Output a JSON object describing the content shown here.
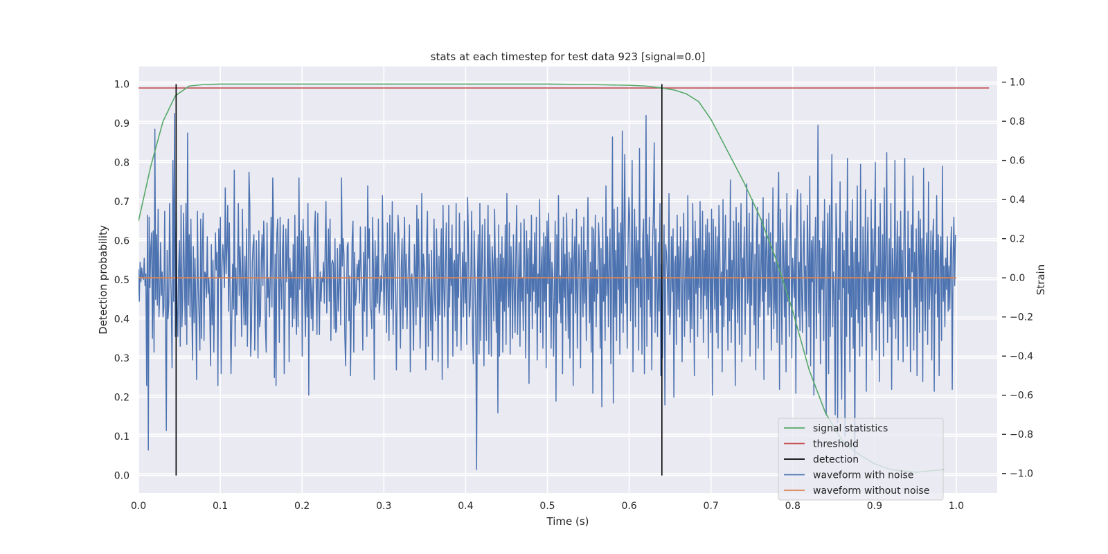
{
  "chart_data": {
    "type": "line",
    "title": "stats at each timestep for test data 923 [signal=0.0]",
    "xlabel": "Time (s)",
    "ylabel": "Detection probability",
    "y2label": "Strain",
    "xlim": [
      0.0,
      1.05
    ],
    "ylim": [
      -0.045,
      1.045
    ],
    "y2lim": [
      -1.1,
      1.08
    ],
    "xticks": [
      0.0,
      0.1,
      0.2,
      0.3,
      0.4,
      0.5,
      0.6,
      0.7,
      0.8,
      0.9,
      1.0
    ],
    "xtick_labels": [
      "0.0",
      "0.1",
      "0.2",
      "0.3",
      "0.4",
      "0.5",
      "0.6",
      "0.7",
      "0.8",
      "0.9",
      "1.0"
    ],
    "yticks": [
      0.0,
      0.1,
      0.2,
      0.3,
      0.4,
      0.5,
      0.6,
      0.7,
      0.8,
      0.9,
      1.0
    ],
    "ytick_labels": [
      "0.0",
      "0.1",
      "0.2",
      "0.3",
      "0.4",
      "0.5",
      "0.6",
      "0.7",
      "0.8",
      "0.9",
      "1.0"
    ],
    "y2ticks": [
      -1.0,
      -0.8,
      -0.6,
      -0.4,
      -0.2,
      0.0,
      0.2,
      0.4,
      0.6,
      0.8,
      1.0
    ],
    "y2tick_labels": [
      "−1.0",
      "−0.8",
      "−0.6",
      "−0.4",
      "−0.2",
      "0.0",
      "0.2",
      "0.4",
      "0.6",
      "0.8",
      "1.0"
    ],
    "grid": true,
    "legend_position": "bottom-right",
    "series": [
      {
        "name": "signal statistics",
        "axis": "left",
        "color": "#55a868",
        "x": [
          0.0,
          0.015,
          0.03,
          0.045,
          0.062,
          0.08,
          0.1,
          0.2,
          0.3,
          0.4,
          0.5,
          0.55,
          0.6,
          0.62,
          0.64,
          0.655,
          0.67,
          0.685,
          0.7,
          0.72,
          0.74,
          0.76,
          0.78,
          0.8,
          0.82,
          0.84,
          0.86,
          0.88,
          0.9,
          0.92,
          0.95,
          0.985
        ],
        "values": [
          0.65,
          0.79,
          0.905,
          0.97,
          0.995,
          0.999,
          1.0,
          1.0,
          1.0,
          1.0,
          1.0,
          0.999,
          0.997,
          0.995,
          0.99,
          0.985,
          0.975,
          0.955,
          0.91,
          0.83,
          0.75,
          0.66,
          0.55,
          0.42,
          0.27,
          0.16,
          0.09,
          0.055,
          0.03,
          0.015,
          0.008,
          0.015
        ]
      },
      {
        "name": "threshold",
        "axis": "left",
        "color": "#c44e52",
        "x": [
          0.0,
          1.04
        ],
        "values": [
          0.99,
          0.99
        ]
      },
      {
        "name": "detection",
        "axis": "left",
        "color": "#000000",
        "x": [
          0.046,
          0.64
        ],
        "ymin": 0.0,
        "ymax": 1.0
      },
      {
        "name": "waveform with noise",
        "axis": "right",
        "color": "#4c72b0",
        "x_range": [
          0.0,
          0.9990234375
        ],
        "values": [
          0.045,
          -0.12,
          0.08,
          -0.02,
          0.05,
          0.0,
          -0.01,
          0.1,
          -0.04,
          0.02,
          -0.55,
          0.32,
          -0.88,
          0.31,
          -0.05,
          0.15,
          0.23,
          -0.31,
          0.24,
          -0.38,
          0.76,
          -0.11,
          0.22,
          -0.14,
          0.35,
          -0.2,
          -0.08,
          0.18,
          -0.09,
          0.03,
          -0.2,
          -0.15,
          0.34,
          -0.25,
          -0.78,
          0.14,
          -0.21,
          -0.13,
          0.38,
          0.05,
          -0.11,
          -0.46,
          0.6,
          -0.12,
          0.84,
          -0.3,
          0.34,
          -0.16,
          -0.3,
          0.04,
          0.19,
          -0.35,
          0.37,
          -0.25,
          -0.11,
          0.33,
          0.03,
          -0.24,
          0.38,
          -0.34,
          0.74,
          -0.14,
          0.22,
          -0.2,
          0.3,
          -0.12,
          -0.42,
          0.16,
          -0.23,
          0.1,
          -0.16,
          -0.52,
          0.34,
          -0.04,
          -0.2,
          -0.37,
          0.3,
          -0.31,
          0.16,
          0.33,
          -0.32,
          0.03,
          0.02,
          -0.1,
          0.21,
          -0.08,
          0.0,
          -0.14,
          -0.45,
          0.17,
          -0.24,
          0.09,
          -0.38,
          -0.07,
          0.23,
          0.04,
          0.13,
          -0.55,
          0.25,
          0.0,
          0.31,
          -0.49,
          0.06,
          0.17,
          0.09,
          -0.05,
          0.46,
          0.02,
          0.16,
          0.37,
          -0.17,
          0.28,
          -0.13,
          -0.49,
          -0.21,
          0.07,
          -0.16,
          0.55,
          -0.35,
          0.05,
          -0.19,
          0.04,
          0.38,
          -0.09,
          0.16,
          0.0,
          -0.3,
          0.35,
          -0.05,
          -0.24,
          0.11,
          -0.24,
          0.25,
          -0.35,
          -0.03,
          0.54,
          0.37,
          -0.4,
          -0.26,
          0.08,
          0.17,
          0.22,
          -0.37,
          -0.09,
          0.19,
          -0.09,
          -0.41,
          0.24,
          -0.25,
          -0.21,
          0.09,
          0.22,
          -0.04,
          0.29,
          0.09,
          -0.25,
          -0.38,
          0.28,
          -0.1,
          0.0,
          -0.2,
          0.01,
          0.31,
          -0.15,
          0.51,
          0.24,
          -0.51,
          0.12,
          -0.55,
          0.22,
          0.3,
          0.04,
          -0.33,
          0.31,
          -0.02,
          -0.16,
          0.15,
          0.27,
          -0.49,
          -0.14,
          0.25,
          -0.02,
          0.14,
          0.3,
          -0.43,
          0.1,
          -0.1,
          0.03,
          -0.25,
          0.17,
          -0.21,
          0.32,
          -0.13,
          -0.29,
          0.21,
          -0.25,
          0.51,
          -0.06,
          0.05,
          0.24,
          -0.4,
          0.3,
          0.13,
          -0.1,
          -0.3,
          0.16,
          -0.2,
          0.38,
          -0.6,
          0.21,
          0.0,
          -0.21,
          0.0,
          -0.27,
          0.02,
          0.24,
          0.34,
          -0.03,
          -0.29,
          0.33,
          -0.08,
          -0.29,
          0.03,
          -0.12,
          0.0,
          -0.02,
          0.08,
          -0.13,
          0.15,
          0.39,
          -0.18,
          0.03,
          0.25,
          -0.12,
          0.3,
          -0.32,
          0.07,
          0.09,
          0.07,
          -0.26,
          0.2,
          -0.28,
          -0.26,
          0.15,
          -0.17,
          -0.04,
          0.17,
          -0.24,
          0.51,
          0.06,
          0.2,
          0.12,
          -0.29,
          -0.45,
          -0.14,
          0.16,
          0.18,
          -0.22,
          0.01,
          -0.5,
          -0.15,
          0.2,
          0.29,
          -0.38,
          0.13,
          -0.14,
          -0.09,
          0.07,
          -0.01,
          0.09,
          -0.13,
          0.26,
          0.04,
          -0.07,
          -0.37,
          0.13,
          -0.17,
          0.26,
          0.01,
          -0.3,
          0.47,
          0.1,
          0.25,
          -0.15,
          -0.17,
          -0.26,
          0.31,
          0.04,
          -0.52,
          0.19,
          -0.15,
          0.11,
          -0.13,
          0.3,
          -0.18,
          -0.13,
          0.01,
          -0.07,
          0.42,
          0.05,
          -0.19,
          0.07,
          0.12,
          -0.28,
          0.28,
          -0.11,
          -0.32,
          0.32,
          0.05,
          -0.16,
          0.39,
          -0.29,
          0.06,
          0.23,
          -0.02,
          -0.47,
          -0.09,
          0.32,
          0.22,
          -0.09,
          -0.36,
          0.05,
          0.2,
          -0.26,
          0.1,
          0.31,
          -0.15,
          0.12,
          -0.26,
          -0.03,
          0.1,
          0.27,
          -0.48,
          0.0,
          0.02,
          -0.12,
          -0.37,
          0.17,
          0.05,
          -0.24,
          0.37,
          -0.15,
          0.3,
          0.02,
          -0.36,
          -0.14,
          0.43,
          -0.2,
          0.12,
          0.06,
          -0.03,
          -0.47,
          0.19,
          0.34,
          -0.35,
          0.12,
          -0.09,
          -0.27,
          0.14,
          -0.42,
          -0.06,
          0.3,
          -0.13,
          -0.22,
          0.25,
          0.02,
          -0.43,
          0.11,
          -0.19,
          0.11,
          0.25,
          -0.52,
          0.37,
          -0.05,
          -0.2,
          0.08,
          0.28,
          -0.16,
          -0.46,
          0.37,
          -0.15,
          0.15,
          -0.04,
          0.27,
          -0.4,
          0.07,
          0.09,
          -0.27,
          0.38,
          -0.35,
          0.12,
          -0.1,
          0.33,
          0.1,
          -0.37,
          -0.06,
          0.13,
          -0.2,
          0.29,
          -0.13,
          0.08,
          -0.34,
          0.41,
          0.21,
          -0.2,
          -0.15,
          0.02,
          0.34,
          -0.29,
          -0.44,
          0.24,
          0.01,
          -0.23,
          -0.98,
          -0.02,
          0.22,
          -0.39,
          0.38,
          -0.32,
          0.06,
          0.27,
          -0.11,
          -0.45,
          0.3,
          -0.11,
          -0.32,
          0.06,
          0.37,
          -0.39,
          0.22,
          0.01,
          -0.4,
          0.16,
          0.07,
          -0.22,
          0.35,
          0.04,
          -0.28,
          0.1,
          -0.69,
          0.27,
          -0.4,
          0.12,
          -0.12,
          0.21,
          -0.38,
          0.1,
          -0.17,
          0.27,
          -0.34,
          0.43,
          -0.03,
          -0.15,
          0.28,
          -0.39,
          0.16,
          0.01,
          -0.31,
          0.22,
          -0.05,
          -0.28,
          0.14,
          0.37,
          -0.29,
          -0.06,
          0.18,
          -0.35,
          0.28,
          -0.12,
          0.0,
          -0.27,
          0.3,
          0.04,
          -0.41,
          0.24,
          -0.08,
          0.15,
          -0.54,
          0.19,
          -0.12,
          0.32,
          -0.26,
          0.07,
          -0.07,
          0.23,
          -0.18,
          0.31,
          -0.42,
          0.02,
          -0.15,
          0.4,
          -0.28,
          0.05,
          0.16,
          -0.36,
          0.23,
          -0.12,
          0.21,
          -0.46,
          0.29,
          -0.03,
          0.33,
          -0.2,
          0.18,
          -0.36,
          0.08,
          0.02,
          -0.4,
          -0.07,
          0.29,
          -0.63,
          0.22,
          -0.18,
          0.42,
          -0.13,
          0.01,
          -0.23,
          0.2,
          -0.49,
          0.31,
          -0.1,
          0.12,
          -0.27,
          0.33,
          0.0,
          -0.31,
          0.13,
          -0.41,
          0.1,
          -0.08,
          0.3,
          -0.55,
          0.1,
          0.21,
          -0.18,
          0.35,
          -0.36,
          -0.02,
          0.17,
          0.03,
          -0.46,
          0.26,
          -0.03,
          -0.2,
          0.31,
          -0.13,
          0.14,
          -0.32,
          0.06,
          0.41,
          0.02,
          -0.23,
          0.08,
          -0.38,
          0.26,
          -0.59,
          0.25,
          -0.12,
          0.32,
          -0.25,
          0.04,
          -0.08,
          0.28,
          0.16,
          -0.36,
          0.15,
          -0.66,
          0.31,
          -0.12,
          0.07,
          -0.32,
          0.47,
          -0.09,
          0.21,
          -0.25,
          0.08,
          0.25,
          -0.44,
          0.05,
          0.72,
          -0.64,
          0.35,
          -0.2,
          0.14,
          -0.32,
          0.36,
          -0.06,
          0.23,
          -0.39,
          0.28,
          -0.18,
          0.75,
          -0.28,
          0.24,
          0.63,
          -0.13,
          0.06,
          -0.36,
          0.15,
          0.41,
          0.3,
          -0.22,
          0.01,
          0.6,
          -0.48,
          0.09,
          0.35,
          -0.25,
          0.26,
          -0.05,
          0.19,
          -0.37,
          0.66,
          -0.15,
          0.1,
          -0.39,
          0.2,
          0.3,
          -0.49,
          0.15,
          0.83,
          -0.35,
          0.22,
          -0.11,
          0.31,
          -0.2,
          0.11,
          -0.47,
          0.19,
          0.34,
          0.69,
          -0.28,
          0.25,
          -0.04,
          -0.3,
          0.18,
          -0.17,
          0.38,
          -0.5,
          0.07,
          -0.41,
          0.05,
          0.27,
          -0.65,
          0.17,
          0.12,
          0.01,
          -0.19,
          0.43,
          -0.29,
          -0.15,
          0.21,
          -0.07,
          0.25,
          -0.61,
          0.07,
          0.11,
          -0.34,
          0.32,
          -0.16,
          0.16,
          -0.2,
          0.26,
          0.04,
          -0.43,
          0.09,
          0.33,
          -0.3,
          0.0,
          0.19,
          -0.22,
          0.42,
          -0.11,
          0.1,
          -0.33,
          0.11,
          -0.26,
          0.38,
          0.0,
          -0.5,
          0.29,
          -0.08,
          0.2,
          -0.3,
          0.2,
          -0.05,
          0.39,
          -0.21,
          -0.02,
          0.34,
          -0.33,
          0.14,
          -0.09,
          0.27,
          -0.16,
          0.3,
          -0.41,
          0.23,
          0.04,
          -0.28,
          0.35,
          -0.6,
          0.3,
          0.06,
          -0.16,
          0.26,
          -0.28,
          0.21,
          -0.36,
          0.37,
          0.15,
          -0.14,
          0.03,
          -0.48,
          0.4,
          -0.25,
          0.08,
          0.32,
          -0.1,
          0.04,
          -0.37,
          0.2,
          -0.22,
          0.5,
          -0.33,
          0.09,
          -0.16,
          0.29,
          0.02,
          -0.55,
          0.36,
          -0.04,
          -0.23,
          0.28,
          -0.34,
          0.13,
          0.38,
          -0.43,
          0.1,
          0.0,
          0.26,
          -0.29,
          0.06,
          0.48,
          -0.13,
          -0.05,
          0.33,
          -0.4,
          0.18,
          -0.14,
          0.4,
          0.07,
          -0.24,
          0.12,
          -0.47,
          0.23,
          0.36,
          -0.36,
          0.17,
          -0.2,
          0.02,
          0.3,
          -0.12,
          0.41,
          -0.52,
          0.21,
          -0.07,
          0.3,
          0.1,
          -0.19,
          0.33,
          -0.15,
          0.23,
          -0.37,
          -0.01,
          0.46,
          -0.26,
          0.08,
          -0.18,
          0.18,
          -0.33,
          0.32,
          0.54,
          -0.57,
          0.35,
          -0.02,
          -0.34,
          0.28,
          0.12,
          -0.2,
          0.19,
          -0.48,
          0.43,
          -0.12,
          0.06,
          -0.3,
          0.26,
          0.37,
          -0.41,
          0.1,
          0.01,
          -0.1,
          0.2,
          -0.59,
          0.33,
          0.45,
          -0.2,
          0.08,
          -0.27,
          0.43,
          -0.05,
          -0.28,
          0.14,
          0.29,
          -0.17,
          0.06,
          -0.39,
          0.37,
          0.11,
          -0.25,
          0.52,
          -0.45,
          0.19,
          -0.02,
          0.21,
          -0.6,
          0.1,
          0.31,
          -0.31,
          0.05,
          0.78,
          -0.18,
          0.19,
          -0.44,
          0.15,
          -0.06,
          0.29,
          -0.32,
          0.4,
          -0.1,
          -0.7,
          0.09,
          0.33,
          -0.49,
          0.37,
          -0.3,
          0.24,
          0.63,
          -0.25,
          0.03,
          -0.08,
          -0.7,
          0.38,
          0.21,
          -0.74,
          0.2,
          -0.11,
          0.49,
          -0.32,
          -0.62,
          0.23,
          -0.05,
          0.14,
          -0.81,
          0.34,
          -0.3,
          0.61,
          -0.08,
          0.06,
          -0.48,
          0.29,
          -0.2,
          0.4,
          -0.36,
          0.13,
          -0.92,
          0.2,
          -0.16,
          0.47,
          -0.23,
          0.08,
          -0.4,
          0.58,
          -0.1,
          -0.35,
          0.26,
          0.02,
          -0.2,
          0.45,
          -0.58,
          0.12,
          0.31,
          -0.14,
          0.03,
          -0.28,
          0.4,
          -0.42,
          0.25,
          -0.07,
          0.18,
          0.59,
          -0.37,
          0.06,
          -0.22,
          0.26,
          -0.53,
          0.38,
          0.03,
          -0.18,
          0.22,
          -0.4,
          0.46,
          -0.12,
          0.13,
          0.64,
          -0.33,
          -0.04,
          0.2,
          -0.25,
          0.38,
          -0.57,
          0.15,
          0.0,
          -0.21,
          0.6,
          -0.31,
          0.06,
          0.29,
          -0.42,
          0.21,
          -0.1,
          0.34,
          -0.2,
          0.14,
          -0.43,
          0.2,
          0.61,
          -0.2,
          0.0,
          -0.35,
          0.34,
          -0.06,
          0.15,
          -0.48,
          0.27,
          0.03,
          0.52,
          -0.37,
          0.13,
          -0.15,
          0.25,
          -0.5,
          0.06,
          0.34,
          -0.28,
          0.3,
          -0.12,
          0.2,
          -0.53,
          0.56,
          0.0,
          -0.27,
          0.1,
          0.23,
          -0.34,
          0.49,
          -0.16,
          -0.03,
          0.24,
          -0.42,
          0.17,
          0.3,
          -0.58,
          0.14,
          -0.08,
          0.42,
          -0.2,
          0.22,
          -0.5,
          0.09,
          0.21,
          -0.32,
          0.57,
          -0.12,
          0.06,
          -0.25,
          0.1,
          -0.06,
          0.21,
          -0.17,
          0.06,
          -0.16,
          0.14,
          0.26,
          -0.57,
          0.09,
          0.31,
          -0.04,
          0.22
        ]
      },
      {
        "name": "waveform without noise",
        "axis": "right",
        "color": "#dd8452",
        "x": [
          0.0,
          1.0
        ],
        "values": [
          0.0,
          0.0
        ]
      }
    ]
  }
}
